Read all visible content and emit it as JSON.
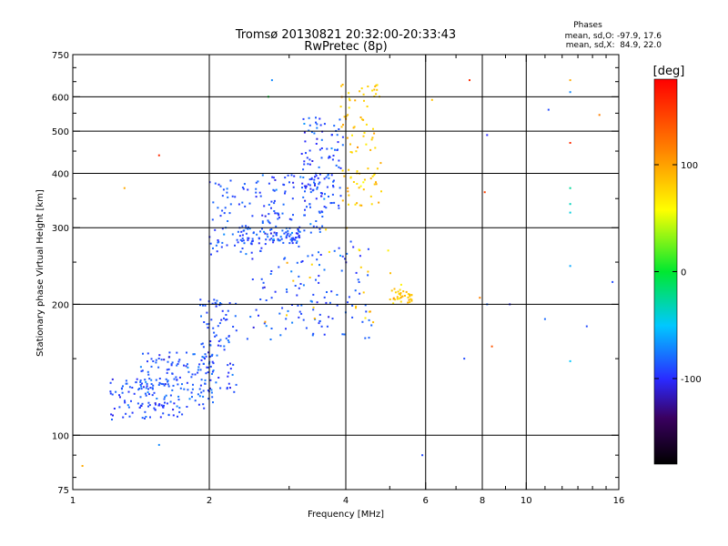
{
  "chart_data": {
    "type": "scatter",
    "title": "Tromsø 20130821 20:32:00-20:33:43",
    "subtitle": "RwPretec (8p)",
    "xlabel": "Frequency [MHz]",
    "ylabel": "Stationary phase Virtual Height [km]",
    "x_scale": "log",
    "y_scale": "log",
    "xlim": [
      1,
      16
    ],
    "ylim": [
      75,
      750
    ],
    "x_ticks": [
      "1",
      "2",
      "4",
      "6",
      "8",
      "10",
      "16"
    ],
    "x_tick_values": [
      1,
      2,
      4,
      6,
      8,
      10,
      16
    ],
    "y_ticks": [
      "75",
      "100",
      "200",
      "300",
      "400",
      "500",
      "600",
      "750"
    ],
    "y_tick_values": [
      75,
      100,
      200,
      300,
      400,
      500,
      600,
      750
    ],
    "grid": true,
    "stats": {
      "title": "Phases",
      "line1": "mean, sd,O: -97.9, 17.6",
      "line2": "mean, sd,X:  84.9, 22.0"
    },
    "colorbar": {
      "label": "[deg]",
      "range": [
        -180,
        180
      ],
      "ticks": [
        "100",
        "0",
        "-100"
      ],
      "tick_values": [
        100,
        0,
        -100
      ]
    },
    "series": [
      {
        "mode": "O",
        "phase_deg": -97.9,
        "clusters": [
          {
            "f": [
              1.2,
              1.75
            ],
            "h": [
              108,
              135
            ],
            "n": 90
          },
          {
            "f": [
              1.4,
              2.05
            ],
            "h": [
              115,
              155
            ],
            "n": 140
          },
          {
            "f": [
              1.9,
              2.3
            ],
            "h": [
              125,
              205
            ],
            "n": 90
          },
          {
            "f": [
              2.0,
              2.6
            ],
            "h": [
              260,
              390
            ],
            "n": 70
          },
          {
            "f": [
              2.3,
              3.2
            ],
            "h": [
              275,
              300
            ],
            "n": 80
          },
          {
            "f": [
              2.6,
              3.6
            ],
            "h": [
              290,
              400
            ],
            "n": 90
          },
          {
            "f": [
              3.2,
              3.95
            ],
            "h": [
              330,
              540
            ],
            "n": 110
          },
          {
            "f": [
              2.4,
              4.6
            ],
            "h": [
              165,
              280
            ],
            "n": 120
          }
        ]
      },
      {
        "mode": "X",
        "phase_deg": 84.9,
        "clusters": [
          {
            "f": [
              3.9,
              4.8
            ],
            "h": [
              330,
              640
            ],
            "n": 90
          },
          {
            "f": [
              5.0,
              5.6
            ],
            "h": [
              200,
              218
            ],
            "n": 35
          },
          {
            "f": [
              2.6,
              5.4
            ],
            "h": [
              180,
              300
            ],
            "n": 25
          }
        ]
      },
      {
        "mode": "scattered",
        "points": [
          {
            "x": 1.05,
            "y": 85,
            "phase": 100
          },
          {
            "x": 1.3,
            "y": 370,
            "phase": 100
          },
          {
            "x": 1.55,
            "y": 440,
            "phase": 160
          },
          {
            "x": 1.55,
            "y": 95,
            "phase": -80
          },
          {
            "x": 2.7,
            "y": 600,
            "phase": 0
          },
          {
            "x": 2.75,
            "y": 655,
            "phase": -80
          },
          {
            "x": 5.9,
            "y": 90,
            "phase": -100
          },
          {
            "x": 7.5,
            "y": 655,
            "phase": 160
          },
          {
            "x": 8.2,
            "y": 490,
            "phase": -110
          },
          {
            "x": 12.5,
            "y": 655,
            "phase": 100
          },
          {
            "x": 12.5,
            "y": 615,
            "phase": -80
          },
          {
            "x": 12.5,
            "y": 470,
            "phase": 160
          },
          {
            "x": 12.5,
            "y": 370,
            "phase": -30
          },
          {
            "x": 12.5,
            "y": 340,
            "phase": -40
          },
          {
            "x": 12.5,
            "y": 325,
            "phase": -50
          },
          {
            "x": 12.5,
            "y": 245,
            "phase": -70
          },
          {
            "x": 12.5,
            "y": 148,
            "phase": -60
          },
          {
            "x": 14.5,
            "y": 545,
            "phase": 120
          },
          {
            "x": 15.5,
            "y": 225,
            "phase": -100
          },
          {
            "x": 13.6,
            "y": 178,
            "phase": -100
          },
          {
            "x": 11.2,
            "y": 560,
            "phase": -100
          },
          {
            "x": 7.3,
            "y": 150,
            "phase": -100
          },
          {
            "x": 8.2,
            "y": 200,
            "phase": -90
          },
          {
            "x": 9.2,
            "y": 200,
            "phase": -110
          },
          {
            "x": 11.0,
            "y": 185,
            "phase": -90
          },
          {
            "x": 7.9,
            "y": 207,
            "phase": 120
          },
          {
            "x": 8.1,
            "y": 362,
            "phase": 150
          },
          {
            "x": 8.4,
            "y": 160,
            "phase": 140
          },
          {
            "x": 6.2,
            "y": 590,
            "phase": 90
          }
        ]
      }
    ]
  }
}
